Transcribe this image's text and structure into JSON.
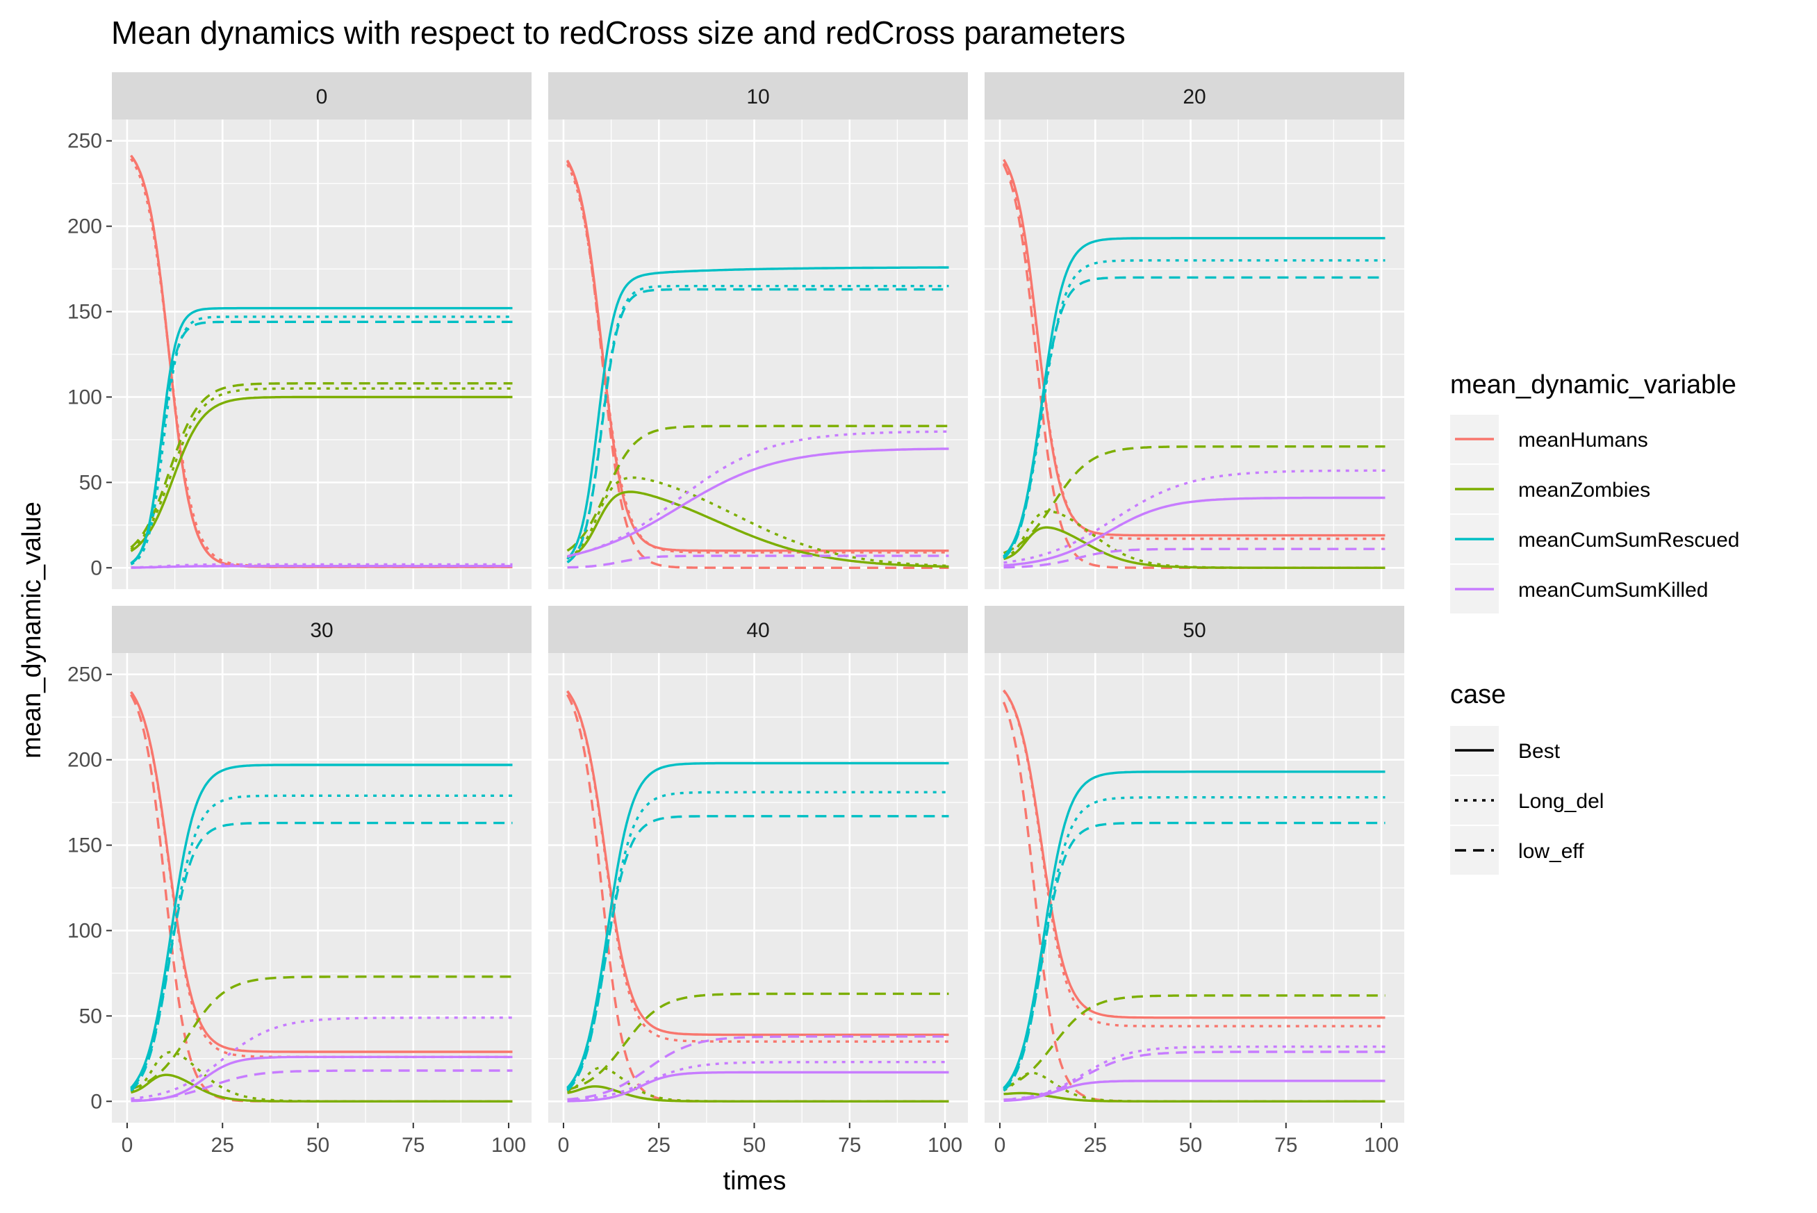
{
  "chart_data": {
    "type": "line",
    "title": "Mean dynamics with respect to redCross size and redCross parameters",
    "xlabel": "times",
    "ylabel": "mean_dynamic_value",
    "xlim": [
      1,
      101
    ],
    "ylim": [
      0,
      250
    ],
    "xticks": [
      0,
      25,
      50,
      75,
      100
    ],
    "yticks": [
      0,
      50,
      100,
      150,
      200,
      250
    ],
    "grid": true,
    "facet_by": "redCross size",
    "legend_position": "right",
    "colour_legend": {
      "title": "mean_dynamic_variable",
      "entries": [
        {
          "name": "meanHumans",
          "color": "#F8766D"
        },
        {
          "name": "meanZombies",
          "color": "#7CAE00"
        },
        {
          "name": "meanCumSumRescued",
          "color": "#00BFC4"
        },
        {
          "name": "meanCumSumKilled",
          "color": "#C77CFF"
        }
      ]
    },
    "linetype_legend": {
      "title": "case",
      "entries": [
        {
          "name": "Best",
          "dash": "solid"
        },
        {
          "name": "Long_del",
          "dash": "dotted"
        },
        {
          "name": "low_eff",
          "dash": "dashed"
        }
      ]
    },
    "panels": [
      {
        "label": "0",
        "series": {
          "meanHumans": {
            "Best": {
              "peak": 250,
              "center": 11,
              "width": 3.0,
              "final": 0.5
            },
            "Long_del": {
              "peak": 250,
              "center": 11,
              "width": 3.2,
              "final": 1
            },
            "low_eff": {
              "peak": 250,
              "center": 11,
              "width": 3.0,
              "final": 0.5
            }
          },
          "meanZombies": {
            "Best": {
              "start": 4,
              "center": 12,
              "width": 4.0,
              "final": 100
            },
            "Long_del": {
              "start": 4,
              "center": 11.5,
              "width": 4.0,
              "final": 105
            },
            "low_eff": {
              "start": 4,
              "center": 11,
              "width": 4.0,
              "final": 108
            }
          },
          "meanCumSumRescued": {
            "Best": {
              "start": 0,
              "center": 9,
              "width": 2.0,
              "final": 152
            },
            "Long_del": {
              "start": 0,
              "center": 9.5,
              "width": 2.0,
              "final": 147
            },
            "low_eff": {
              "start": 0,
              "center": 9,
              "width": 2.0,
              "final": 144
            }
          },
          "meanCumSumKilled": {
            "Best": {
              "start": 0,
              "center": 10,
              "width": 4.0,
              "final": 1
            },
            "Long_del": {
              "start": 0,
              "center": 10,
              "width": 4.0,
              "final": 2
            },
            "low_eff": {
              "start": 0,
              "center": 10,
              "width": 4.0,
              "final": 1
            }
          }
        }
      },
      {
        "label": "10",
        "series": {
          "meanHumans": {
            "Best": {
              "peak": 250,
              "center": 10,
              "width": 3.0,
              "final": 10
            },
            "Long_del": {
              "peak": 250,
              "center": 10,
              "width": 3.2,
              "final": 9
            },
            "low_eff": {
              "peak": 250,
              "center": 10,
              "width": 3.0,
              "final": 0
            }
          },
          "meanZombies": {
            "Best": {
              "start": 4,
              "rise_center": 9,
              "rise_width": 2.5,
              "level": 55,
              "decay_center": 40,
              "decay_width": 14,
              "final": 0
            },
            "Long_del": {
              "start": 4,
              "rise_center": 9,
              "rise_width": 2.5,
              "level": 62,
              "decay_center": 45,
              "decay_width": 14,
              "final": 0
            },
            "low_eff": {
              "start": 4,
              "center": 11,
              "width": 4.0,
              "final": 83
            }
          },
          "meanCumSumRescued": {
            "Best": {
              "start": 0,
              "center": 9,
              "width": 2.3,
              "final": 170,
              "drift": 6,
              "drift_width": 25
            },
            "Long_del": {
              "start": 0,
              "center": 10,
              "width": 2.3,
              "final": 165
            },
            "low_eff": {
              "start": 0,
              "center": 10,
              "width": 2.3,
              "final": 163
            }
          },
          "meanCumSumKilled": {
            "Best": {
              "start": 0,
              "center": 30,
              "width": 13,
              "final": 70
            },
            "Long_del": {
              "start": 0,
              "center": 30,
              "width": 12,
              "final": 80
            },
            "low_eff": {
              "start": 0,
              "center": 15,
              "width": 4.0,
              "final": 7
            }
          }
        }
      },
      {
        "label": "20",
        "series": {
          "meanHumans": {
            "Best": {
              "peak": 250,
              "center": 10,
              "width": 3.0,
              "final": 19
            },
            "Long_del": {
              "peak": 250,
              "center": 10,
              "width": 3.2,
              "final": 17
            },
            "low_eff": {
              "peak": 250,
              "center": 9.5,
              "width": 3.0,
              "final": 0
            }
          },
          "meanZombies": {
            "Best": {
              "start": 4,
              "rise_center": 7,
              "rise_width": 2,
              "level": 30,
              "decay_center": 22,
              "decay_width": 6,
              "final": 0
            },
            "Long_del": {
              "start": 4,
              "rise_center": 7,
              "rise_width": 2,
              "level": 40,
              "decay_center": 24,
              "decay_width": 6,
              "final": 0
            },
            "low_eff": {
              "start": 4,
              "center": 14,
              "width": 5.0,
              "final": 71
            }
          },
          "meanCumSumRescued": {
            "Best": {
              "start": 0,
              "center": 11,
              "width": 3.0,
              "final": 193
            },
            "Long_del": {
              "start": 0,
              "center": 11,
              "width": 3.0,
              "final": 180
            },
            "low_eff": {
              "start": 0,
              "center": 10.5,
              "width": 2.8,
              "final": 170
            }
          },
          "meanCumSumKilled": {
            "Best": {
              "start": 0,
              "center": 28,
              "width": 8,
              "final": 41
            },
            "Long_del": {
              "start": 0,
              "center": 30,
              "width": 10,
              "final": 57
            },
            "low_eff": {
              "start": 0,
              "center": 20,
              "width": 5.0,
              "final": 11
            }
          }
        }
      },
      {
        "label": "30",
        "series": {
          "meanHumans": {
            "Best": {
              "peak": 250,
              "center": 11,
              "width": 3.3,
              "final": 29
            },
            "Long_del": {
              "peak": 250,
              "center": 11,
              "width": 3.3,
              "final": 26
            },
            "low_eff": {
              "peak": 250,
              "center": 10,
              "width": 3.0,
              "final": 0
            }
          },
          "meanZombies": {
            "Best": {
              "start": 4,
              "rise_center": 6,
              "rise_width": 2,
              "level": 20,
              "decay_center": 17,
              "decay_width": 4,
              "final": 0
            },
            "Long_del": {
              "start": 4,
              "rise_center": 7,
              "rise_width": 2,
              "level": 40,
              "decay_center": 18,
              "decay_width": 5,
              "final": 0
            },
            "low_eff": {
              "start": 4,
              "center": 16,
              "width": 5.0,
              "final": 73
            }
          },
          "meanCumSumRescued": {
            "Best": {
              "start": 0,
              "center": 11.5,
              "width": 3.3,
              "final": 197
            },
            "Long_del": {
              "start": 0,
              "center": 11.5,
              "width": 3.3,
              "final": 179
            },
            "low_eff": {
              "start": 0,
              "center": 11,
              "width": 3.1,
              "final": 163
            }
          },
          "meanCumSumKilled": {
            "Best": {
              "start": 0,
              "center": 20,
              "width": 4,
              "final": 26
            },
            "Long_del": {
              "start": 0,
              "center": 25,
              "width": 7,
              "final": 49
            },
            "low_eff": {
              "start": 0,
              "center": 22,
              "width": 6.0,
              "final": 18
            }
          }
        }
      },
      {
        "label": "40",
        "series": {
          "meanHumans": {
            "Best": {
              "peak": 250,
              "center": 11,
              "width": 3.3,
              "final": 39
            },
            "Long_del": {
              "peak": 250,
              "center": 11,
              "width": 3.3,
              "final": 35
            },
            "low_eff": {
              "peak": 250,
              "center": 10,
              "width": 3.0,
              "final": 0
            }
          },
          "meanZombies": {
            "Best": {
              "start": 4,
              "rise_center": 5,
              "rise_width": 2,
              "level": 12,
              "decay_center": 14,
              "decay_width": 4,
              "final": 0
            },
            "Long_del": {
              "start": 4,
              "rise_center": 6,
              "rise_width": 2,
              "level": 28,
              "decay_center": 15,
              "decay_width": 4,
              "final": 0
            },
            "low_eff": {
              "start": 4,
              "center": 16,
              "width": 5.0,
              "final": 63
            }
          },
          "meanCumSumRescued": {
            "Best": {
              "start": 0,
              "center": 11.5,
              "width": 3.3,
              "final": 198
            },
            "Long_del": {
              "start": 0,
              "center": 11.5,
              "width": 3.3,
              "final": 181
            },
            "low_eff": {
              "start": 0,
              "center": 11,
              "width": 3.1,
              "final": 167
            }
          },
          "meanCumSumKilled": {
            "Best": {
              "start": 0,
              "center": 20,
              "width": 4,
              "final": 17
            },
            "Long_del": {
              "start": 0,
              "center": 22,
              "width": 6,
              "final": 23
            },
            "low_eff": {
              "start": 0,
              "center": 22,
              "width": 6.0,
              "final": 38
            }
          }
        }
      },
      {
        "label": "50",
        "series": {
          "meanHumans": {
            "Best": {
              "peak": 250,
              "center": 11,
              "width": 3.3,
              "final": 49
            },
            "Long_del": {
              "peak": 250,
              "center": 11,
              "width": 3.3,
              "final": 44
            },
            "low_eff": {
              "peak": 250,
              "center": 9,
              "width": 3.0,
              "final": 0
            }
          },
          "meanZombies": {
            "Best": {
              "start": 4,
              "rise_center": 4,
              "rise_width": 2,
              "level": 6,
              "decay_center": 13,
              "decay_width": 4,
              "final": 0
            },
            "Long_del": {
              "start": 4,
              "rise_center": 5,
              "rise_width": 2,
              "level": 25,
              "decay_center": 13,
              "decay_width": 4,
              "final": 0
            },
            "low_eff": {
              "start": 4,
              "center": 14,
              "width": 5.0,
              "final": 62
            }
          },
          "meanCumSumRescued": {
            "Best": {
              "start": 0,
              "center": 11.5,
              "width": 3.3,
              "final": 193
            },
            "Long_del": {
              "start": 0,
              "center": 11.5,
              "width": 3.3,
              "final": 178
            },
            "low_eff": {
              "start": 0,
              "center": 11,
              "width": 3.1,
              "final": 163
            }
          },
          "meanCumSumKilled": {
            "Best": {
              "start": 0,
              "center": 15,
              "width": 4,
              "final": 12
            },
            "Long_del": {
              "start": 0,
              "center": 22,
              "width": 6,
              "final": 32
            },
            "low_eff": {
              "start": 0,
              "center": 22,
              "width": 6.0,
              "final": 29
            }
          }
        }
      }
    ]
  }
}
